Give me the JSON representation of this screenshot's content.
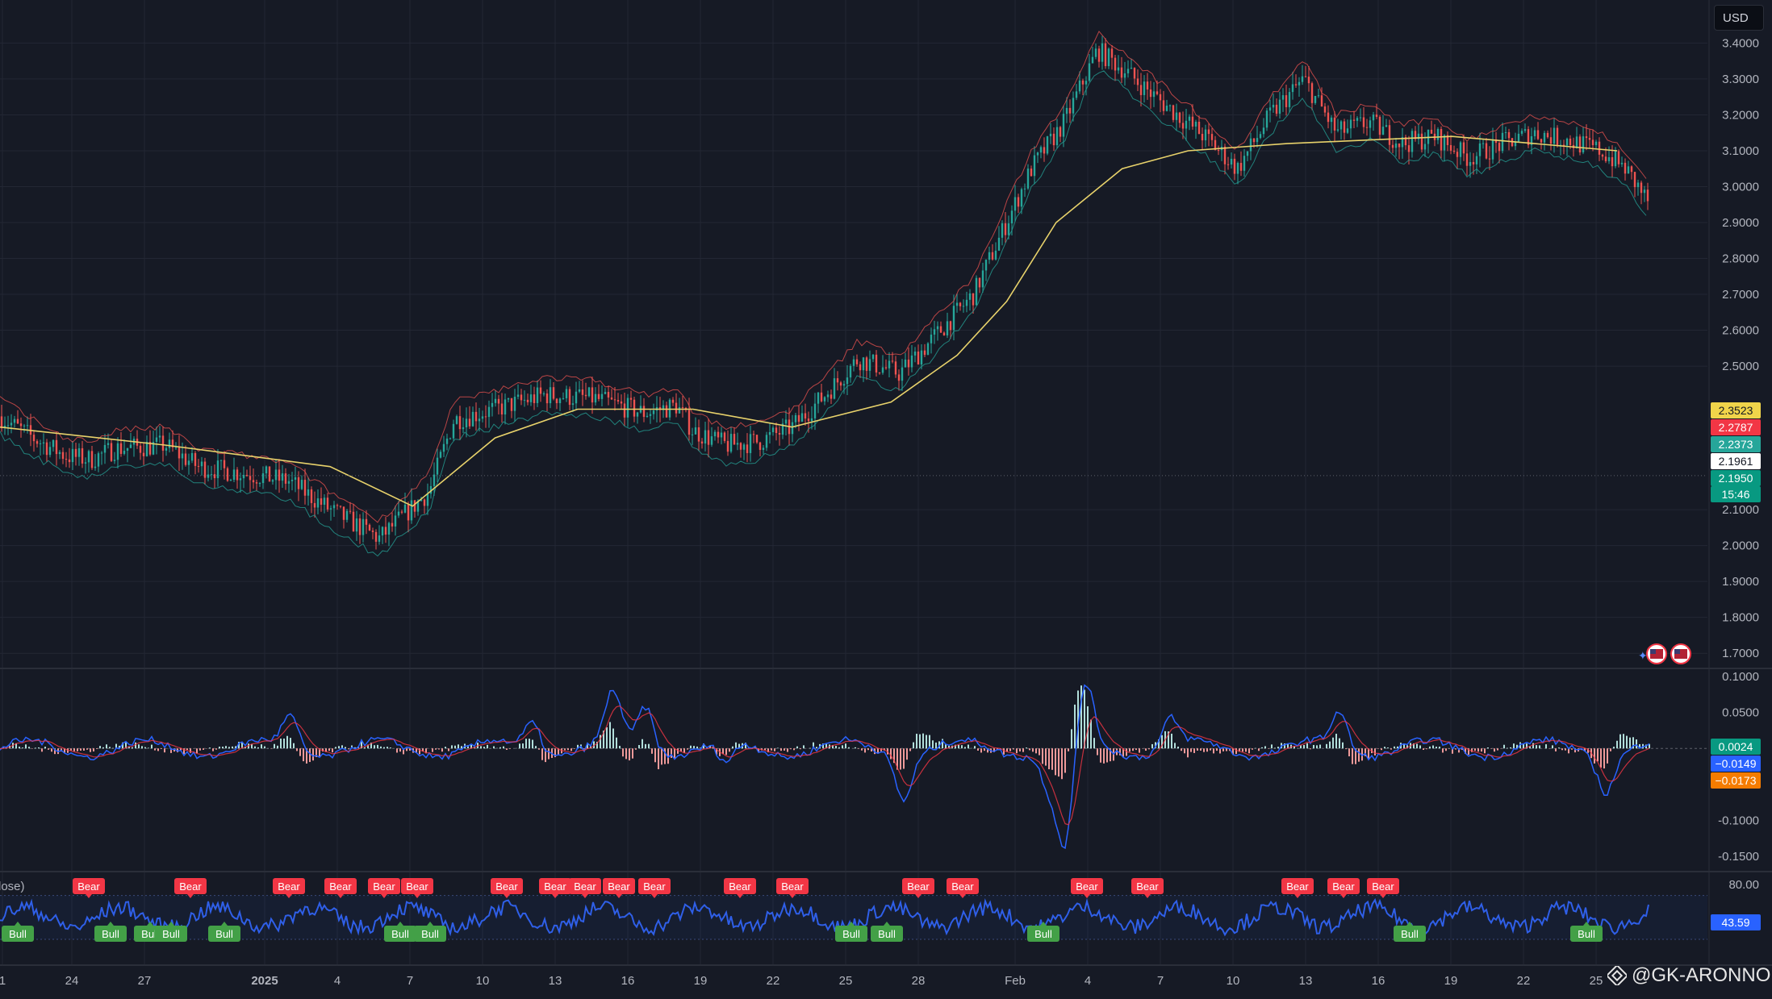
{
  "currency_button": "USD",
  "watermark": "@GK-ARONNO",
  "colors": {
    "background": "#161a25",
    "grid": "#232734",
    "bull_candle": "#26a69a",
    "bear_candle": "#ef5350",
    "ma_line": "#e8d26b",
    "macd_line": "#2962ff",
    "signal_line": "#f23645",
    "rsi_line": "#2f5fe8",
    "bear_label": "#f23645",
    "bull_label": "#43a047"
  },
  "chart_data": [
    {
      "id": "price",
      "type": "candlestick",
      "y_ticks": [
        "3.4000",
        "3.3000",
        "3.2000",
        "3.1000",
        "3.0000",
        "2.9000",
        "2.8000",
        "2.7000",
        "2.6000",
        "2.5000",
        "2.1000",
        "2.0000",
        "1.9000",
        "1.8000",
        "1.7000"
      ],
      "ylim": [
        1.66,
        3.52
      ],
      "x_range": [
        0,
        1000
      ],
      "series_points": [
        [
          0,
          2.36
        ],
        [
          20,
          2.3
        ],
        [
          40,
          2.25
        ],
        [
          55,
          2.24
        ],
        [
          70,
          2.27
        ],
        [
          100,
          2.28
        ],
        [
          120,
          2.22
        ],
        [
          150,
          2.2
        ],
        [
          175,
          2.18
        ],
        [
          200,
          2.1
        ],
        [
          230,
          2.02
        ],
        [
          260,
          2.15
        ],
        [
          275,
          2.35
        ],
        [
          300,
          2.38
        ],
        [
          330,
          2.42
        ],
        [
          360,
          2.41
        ],
        [
          390,
          2.37
        ],
        [
          410,
          2.39
        ],
        [
          420,
          2.32
        ],
        [
          440,
          2.28
        ],
        [
          460,
          2.29
        ],
        [
          480,
          2.33
        ],
        [
          500,
          2.42
        ],
        [
          520,
          2.52
        ],
        [
          545,
          2.48
        ],
        [
          560,
          2.55
        ],
        [
          590,
          2.7
        ],
        [
          610,
          2.9
        ],
        [
          625,
          3.05
        ],
        [
          645,
          3.18
        ],
        [
          665,
          3.38
        ],
        [
          680,
          3.33
        ],
        [
          700,
          3.25
        ],
        [
          730,
          3.14
        ],
        [
          750,
          3.05
        ],
        [
          770,
          3.2
        ],
        [
          790,
          3.3
        ],
        [
          810,
          3.15
        ],
        [
          830,
          3.18
        ],
        [
          850,
          3.12
        ],
        [
          870,
          3.14
        ],
        [
          890,
          3.08
        ],
        [
          910,
          3.12
        ],
        [
          930,
          3.15
        ],
        [
          950,
          3.13
        ],
        [
          970,
          3.1
        ],
        [
          985,
          3.05
        ],
        [
          1000,
          2.95
        ]
      ],
      "ma_points": [
        [
          0,
          2.33
        ],
        [
          100,
          2.28
        ],
        [
          200,
          2.22
        ],
        [
          250,
          2.11
        ],
        [
          300,
          2.3
        ],
        [
          350,
          2.38
        ],
        [
          420,
          2.38
        ],
        [
          480,
          2.33
        ],
        [
          540,
          2.4
        ],
        [
          580,
          2.53
        ],
        [
          610,
          2.68
        ],
        [
          640,
          2.9
        ],
        [
          680,
          3.05
        ],
        [
          720,
          3.1
        ],
        [
          780,
          3.12
        ],
        [
          830,
          3.13
        ],
        [
          880,
          3.14
        ],
        [
          930,
          3.12
        ],
        [
          980,
          3.1
        ]
      ],
      "last_price_labels": [
        {
          "value": "2.3523",
          "color": "#f0d44a",
          "text_color": "#131722"
        },
        {
          "value": "2.2787",
          "color": "#f23645",
          "text_color": "#ffffff"
        },
        {
          "value": "2.2373",
          "color": "#26a69a",
          "text_color": "#ffffff"
        },
        {
          "value": "2.1961",
          "color": "#ffffff",
          "text_color": "#131722"
        },
        {
          "value": "2.1950",
          "color": "#089981",
          "text_color": "#ffffff"
        }
      ],
      "countdown": "15:46"
    },
    {
      "id": "macd",
      "type": "line",
      "y_ticks": [
        "0.1000",
        "0.0500",
        "-0.1000",
        "-0.1500"
      ],
      "ylim": [
        -0.17,
        0.11
      ],
      "series": [
        {
          "name": "macd",
          "color": "#2962ff"
        },
        {
          "name": "signal",
          "color": "#f23645"
        }
      ],
      "value_labels": [
        {
          "value": "0.0024",
          "color": "#089981"
        },
        {
          "value": "−0.0149",
          "color": "#2962ff"
        },
        {
          "value": "−0.0173",
          "color": "#f57c00"
        }
      ]
    },
    {
      "id": "rsi",
      "type": "line",
      "title": "lose)",
      "y_ticks": [
        "80.00"
      ],
      "value_label": "43.59",
      "signals": [
        {
          "text": "Bear",
          "x": 110
        },
        {
          "text": "Bear",
          "x": 236
        },
        {
          "text": "Bear",
          "x": 358
        },
        {
          "text": "Bear",
          "x": 422
        },
        {
          "text": "Bear",
          "x": 476
        },
        {
          "text": "Bear",
          "x": 517
        },
        {
          "text": "Bear",
          "x": 628
        },
        {
          "text": "Bear",
          "x": 688
        },
        {
          "text": "Bear",
          "x": 725
        },
        {
          "text": "Bear",
          "x": 767
        },
        {
          "text": "Bear",
          "x": 811
        },
        {
          "text": "Bear",
          "x": 917
        },
        {
          "text": "Bear",
          "x": 982
        },
        {
          "text": "Bear",
          "x": 1138
        },
        {
          "text": "Bear",
          "x": 1193
        },
        {
          "text": "Bear",
          "x": 1347
        },
        {
          "text": "Bear",
          "x": 1422
        },
        {
          "text": "Bear",
          "x": 1608
        },
        {
          "text": "Bear",
          "x": 1665
        },
        {
          "text": "Bear",
          "x": 1714
        },
        {
          "text": "Bull",
          "x": 22
        },
        {
          "text": "Bull",
          "x": 137
        },
        {
          "text": "Bull",
          "x": 186
        },
        {
          "text": "Bull",
          "x": 212
        },
        {
          "text": "Bull",
          "x": 278
        },
        {
          "text": "Bull",
          "x": 496
        },
        {
          "text": "Bull",
          "x": 533
        },
        {
          "text": "Bull",
          "x": 1055
        },
        {
          "text": "Bull",
          "x": 1099
        },
        {
          "text": "Bull",
          "x": 1293
        },
        {
          "text": "Bull",
          "x": 1747
        },
        {
          "text": "Bull",
          "x": 1966
        }
      ]
    }
  ],
  "x_axis_labels": [
    {
      "text": "1",
      "x": 3
    },
    {
      "text": "24",
      "x": 89
    },
    {
      "text": "27",
      "x": 179
    },
    {
      "text": "2025",
      "x": 328
    },
    {
      "text": "4",
      "x": 418
    },
    {
      "text": "7",
      "x": 508
    },
    {
      "text": "10",
      "x": 598
    },
    {
      "text": "13",
      "x": 688
    },
    {
      "text": "16",
      "x": 778
    },
    {
      "text": "19",
      "x": 868
    },
    {
      "text": "22",
      "x": 958
    },
    {
      "text": "25",
      "x": 1048
    },
    {
      "text": "28",
      "x": 1138
    },
    {
      "text": "Feb",
      "x": 1258
    },
    {
      "text": "4",
      "x": 1348
    },
    {
      "text": "7",
      "x": 1438
    },
    {
      "text": "10",
      "x": 1528
    },
    {
      "text": "13",
      "x": 1618
    },
    {
      "text": "16",
      "x": 1708
    },
    {
      "text": "19",
      "x": 1798
    },
    {
      "text": "22",
      "x": 1888
    },
    {
      "text": "25",
      "x": 1978
    }
  ]
}
